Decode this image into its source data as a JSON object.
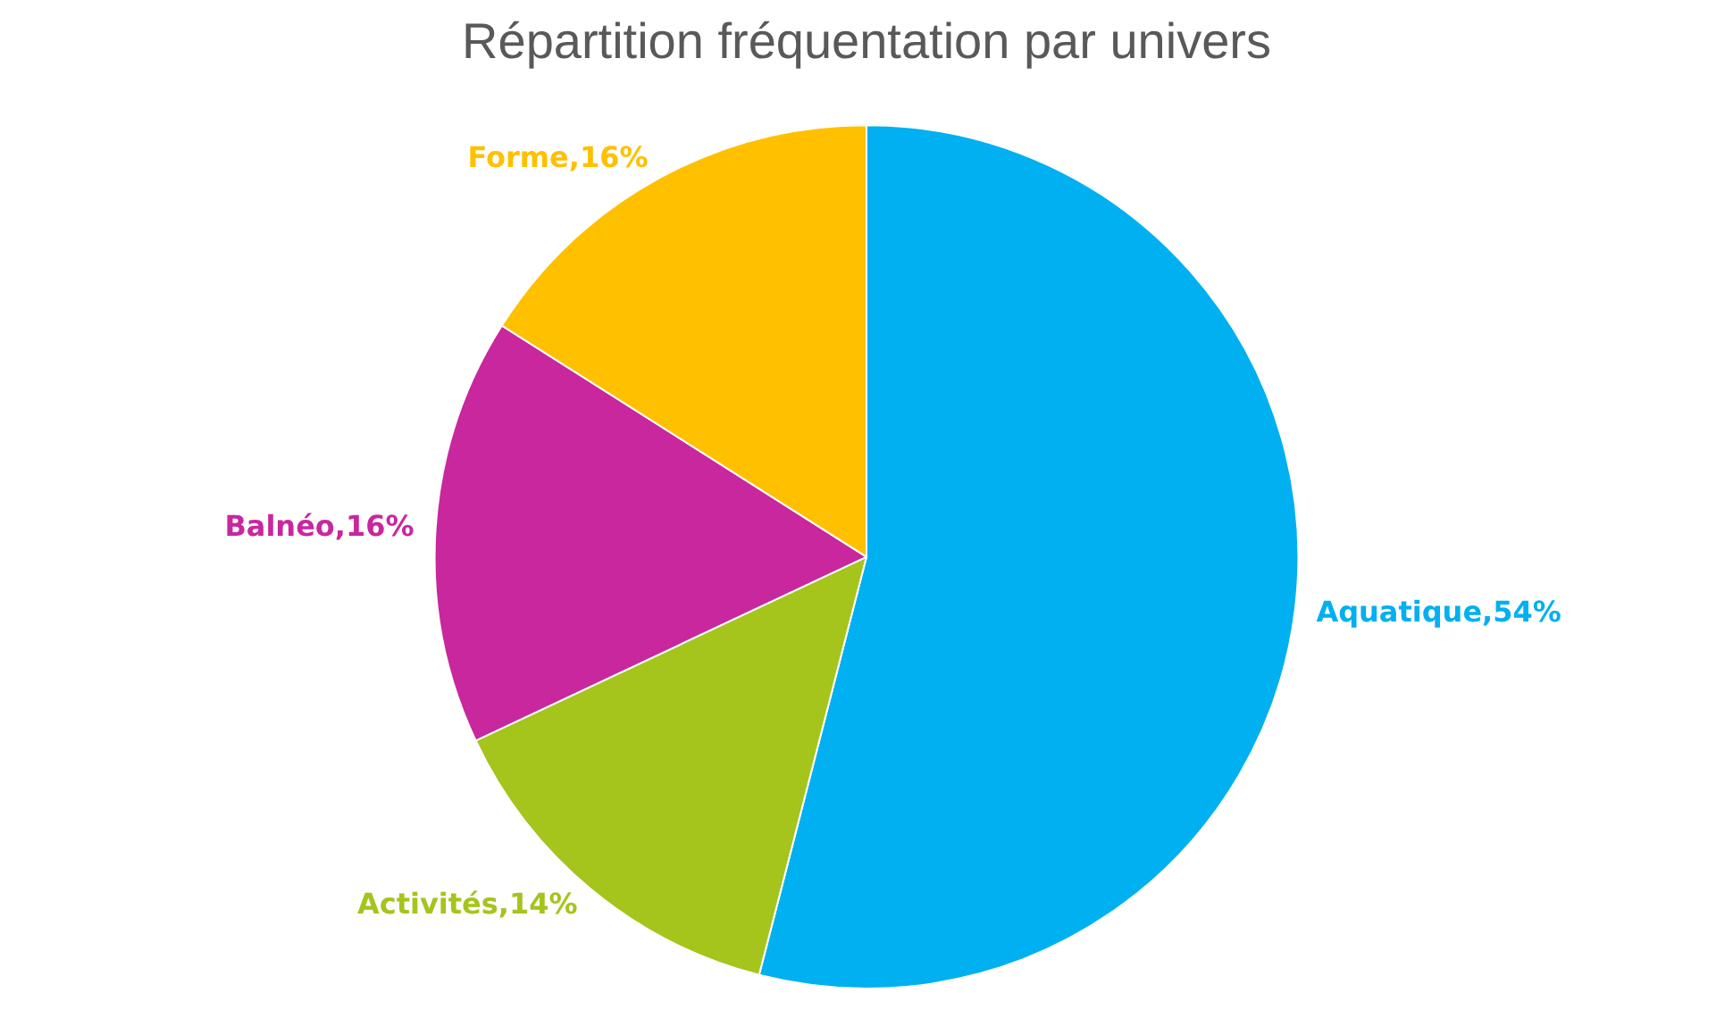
{
  "chart_data": {
    "type": "pie",
    "title": "Répartition fréquentation par univers",
    "categories": [
      "Aquatique",
      "Activités",
      "Balnéo",
      "Forme"
    ],
    "values": [
      54,
      14,
      16,
      16
    ],
    "value_labels": [
      "54%",
      "14%",
      "16%",
      "16%"
    ],
    "colors": [
      "#00b0f0",
      "#a5c41c",
      "#c8279e",
      "#ffc000"
    ],
    "legend": false
  }
}
